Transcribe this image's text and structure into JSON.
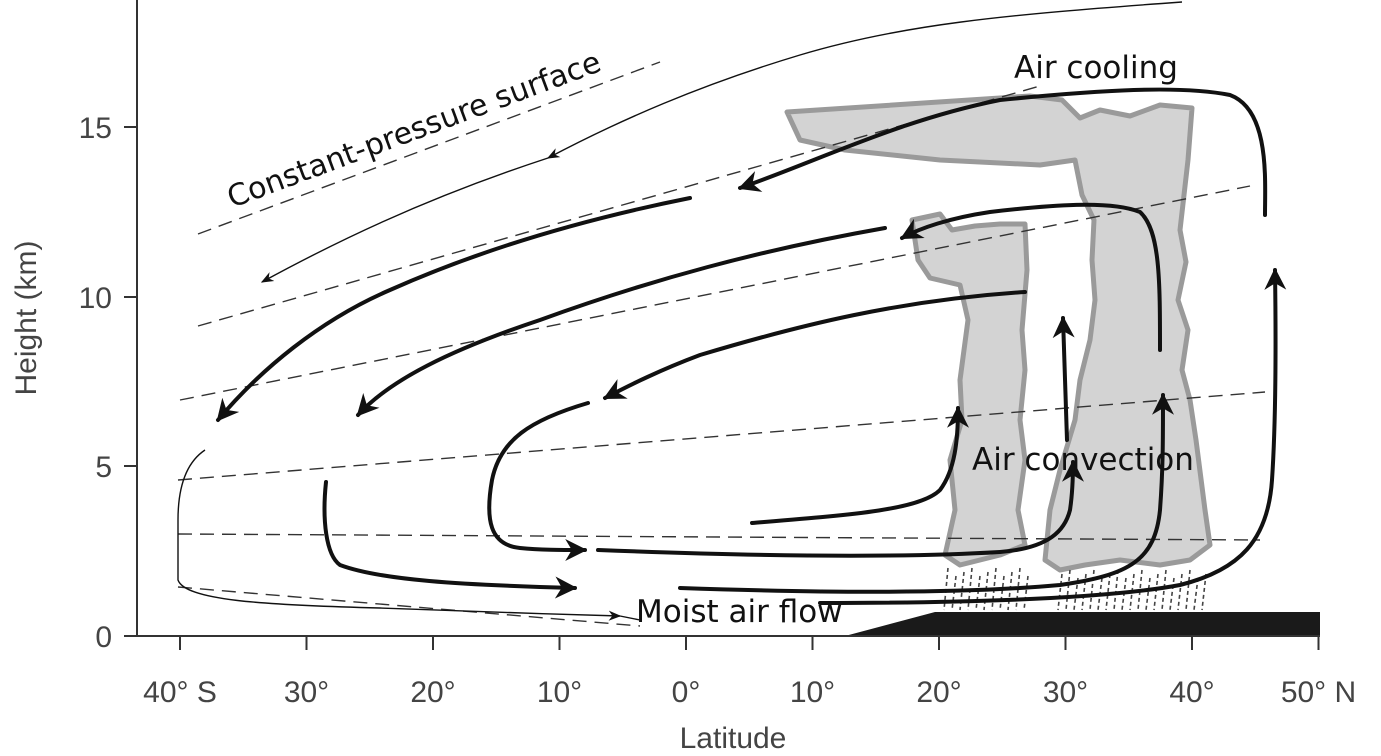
{
  "axes": {
    "x_title": "Latitude",
    "y_title": "Height (km)",
    "x_ticks": [
      "40° S",
      "30°",
      "20°",
      "10°",
      "0°",
      "10°",
      "20°",
      "30°",
      "40°",
      "50° N"
    ],
    "y_ticks": [
      "0",
      "5",
      "10",
      "15"
    ]
  },
  "annotations": {
    "constant_pressure": "Constant-pressure surface",
    "air_cooling": "Air cooling",
    "air_convection": "Air convection",
    "moist_air_flow": "Moist air flow"
  },
  "colors": {
    "cloud_fill": "#d3d3d3",
    "cloud_edge": "#9a9a9a",
    "land": "#1a1a1a",
    "flow_line": "#111111"
  }
}
